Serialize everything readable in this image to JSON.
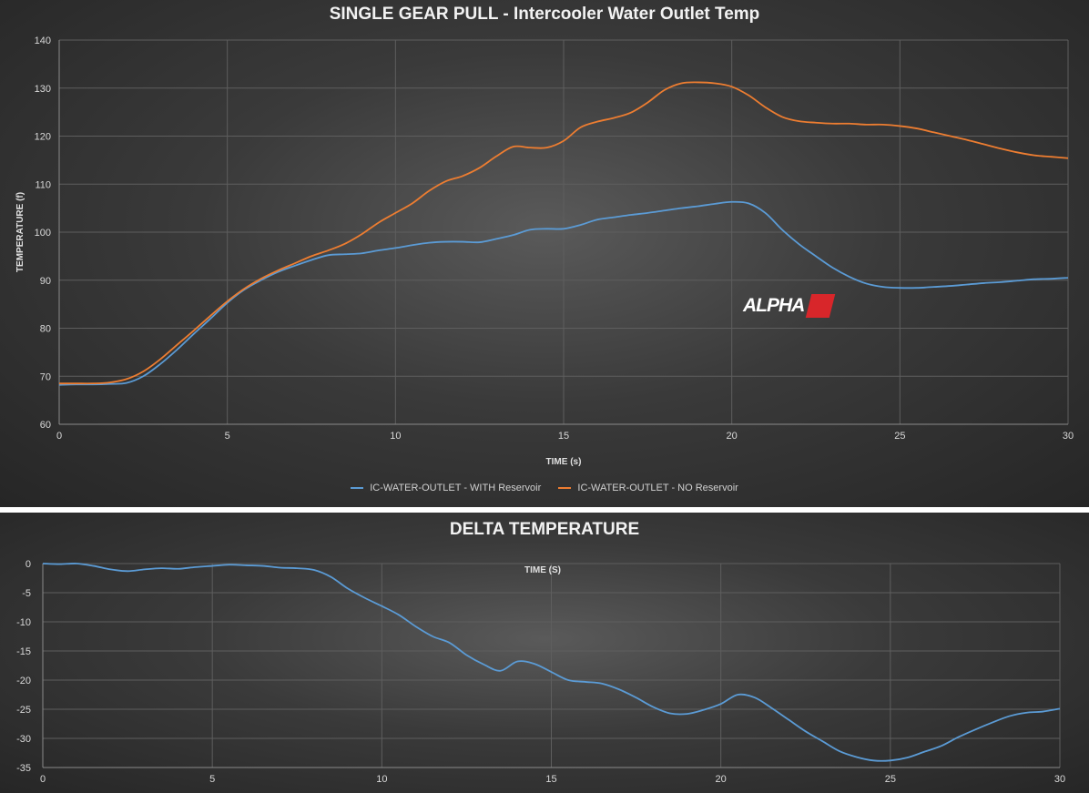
{
  "chart_data": [
    {
      "type": "line",
      "title": "SINGLE GEAR PULL - Intercooler Water Outlet Temp",
      "xlabel": "TIME (s)",
      "ylabel": "TEMPERATURE (f)",
      "xlim": [
        0,
        30
      ],
      "ylim": [
        60,
        140
      ],
      "xticks": [
        "0",
        "5",
        "10",
        "15",
        "20",
        "25",
        "30"
      ],
      "yticks": [
        "60",
        "70",
        "80",
        "90",
        "100",
        "110",
        "120",
        "130",
        "140"
      ],
      "grid": true,
      "legend": "bottom",
      "colors": [
        "#5b9bd5",
        "#ed7d31"
      ],
      "series": [
        {
          "name": "IC-WATER-OUTLET - WITH Reservoir",
          "x": [
            0,
            0.5,
            1,
            1.5,
            2,
            2.5,
            3,
            3.5,
            4,
            4.5,
            5,
            5.5,
            6,
            6.5,
            7,
            7.5,
            8,
            8.5,
            9,
            9.5,
            10,
            10.5,
            11,
            11.5,
            12,
            12.5,
            13,
            13.5,
            14,
            14.5,
            15,
            15.5,
            16,
            16.5,
            17,
            17.5,
            18,
            18.5,
            19,
            19.5,
            20,
            20.5,
            21,
            21.5,
            22,
            22.5,
            23,
            23.5,
            24,
            24.5,
            25,
            25.5,
            26,
            26.5,
            27,
            27.5,
            28,
            28.5,
            29,
            29.5,
            30
          ],
          "values": [
            68.2,
            68.3,
            68.3,
            68.4,
            68.6,
            70,
            72.5,
            75.5,
            78.8,
            82,
            85.3,
            88,
            90,
            91.7,
            93,
            94.2,
            95.2,
            95.4,
            95.6,
            96.2,
            96.7,
            97.3,
            97.8,
            98,
            98,
            97.9,
            98.6,
            99.4,
            100.5,
            100.7,
            100.7,
            101.5,
            102.6,
            103.1,
            103.6,
            104,
            104.5,
            105,
            105.4,
            105.9,
            106.3,
            106,
            104,
            100.5,
            97.5,
            95,
            92.6,
            90.7,
            89.3,
            88.6,
            88.4,
            88.4,
            88.6,
            88.8,
            89.1,
            89.4,
            89.6,
            89.9,
            90.2,
            90.3,
            90.5
          ]
        },
        {
          "name": "IC-WATER-OUTLET - NO Reservoir",
          "x": [
            0,
            0.5,
            1,
            1.5,
            2,
            2.5,
            3,
            3.5,
            4,
            4.5,
            5,
            5.5,
            6,
            6.5,
            7,
            7.5,
            8,
            8.5,
            9,
            9.5,
            10,
            10.5,
            11,
            11.5,
            12,
            12.5,
            13,
            13.5,
            14,
            14.5,
            15,
            15.5,
            16,
            16.5,
            17,
            17.5,
            18,
            18.5,
            19,
            19.5,
            20,
            20.5,
            21,
            21.5,
            22,
            22.5,
            23,
            23.5,
            24,
            24.5,
            25,
            25.5,
            26,
            26.5,
            27,
            27.5,
            28,
            28.5,
            29,
            29.5,
            30
          ],
          "values": [
            68.5,
            68.5,
            68.5,
            68.7,
            69.4,
            71,
            73.5,
            76.5,
            79.5,
            82.6,
            85.6,
            88.2,
            90.3,
            92,
            93.5,
            95,
            96.2,
            97.6,
            99.6,
            102,
            104,
            106,
            108.6,
            110.6,
            111.7,
            113.4,
            115.8,
            117.8,
            117.6,
            117.6,
            119,
            121.8,
            123,
            123.8,
            124.9,
            127,
            129.6,
            131,
            131.2,
            131,
            130.3,
            128.5,
            126,
            124,
            123.1,
            122.8,
            122.6,
            122.6,
            122.4,
            122.4,
            122.1,
            121.6,
            120.8,
            120,
            119.2,
            118.3,
            117.4,
            116.6,
            116,
            115.7,
            115.4
          ]
        }
      ]
    },
    {
      "type": "line",
      "title": "DELTA TEMPERATURE",
      "xlabel": "TIME (S)",
      "ylabel": "",
      "xlim": [
        0,
        30
      ],
      "ylim": [
        -35,
        0
      ],
      "xticks": [
        "0",
        "5",
        "10",
        "15",
        "20",
        "25",
        "30"
      ],
      "yticks": [
        "0",
        "-5",
        "-10",
        "-15",
        "-20",
        "-25",
        "-30",
        "-35"
      ],
      "grid": true,
      "legend": "none",
      "colors": [
        "#5b9bd5"
      ],
      "series": [
        {
          "x": [
            0,
            0.5,
            1,
            1.5,
            2,
            2.5,
            3,
            3.5,
            4,
            4.5,
            5,
            5.5,
            6,
            6.5,
            7,
            7.5,
            8,
            8.5,
            9,
            9.5,
            10,
            10.5,
            11,
            11.5,
            12,
            12.5,
            13,
            13.5,
            14,
            14.5,
            15,
            15.5,
            16,
            16.5,
            17,
            17.5,
            18,
            18.5,
            19,
            19.5,
            20,
            20.5,
            21,
            21.5,
            22,
            22.5,
            23,
            23.5,
            24,
            24.5,
            25,
            25.5,
            26,
            26.5,
            27,
            27.5,
            28,
            28.5,
            29,
            29.5,
            30
          ],
          "values": [
            0,
            -0.1,
            0,
            -0.4,
            -1,
            -1.3,
            -1,
            -0.8,
            -0.9,
            -0.6,
            -0.4,
            -0.2,
            -0.3,
            -0.4,
            -0.7,
            -0.8,
            -1.1,
            -2.3,
            -4.3,
            -5.9,
            -7.3,
            -8.8,
            -10.8,
            -12.5,
            -13.6,
            -15.7,
            -17.3,
            -18.4,
            -16.8,
            -17.2,
            -18.6,
            -20,
            -20.3,
            -20.6,
            -21.6,
            -23,
            -24.6,
            -25.7,
            -25.8,
            -25.1,
            -24.1,
            -22.5,
            -23,
            -24.8,
            -26.8,
            -28.8,
            -30.5,
            -32.2,
            -33.2,
            -33.8,
            -33.8,
            -33.3,
            -32.3,
            -31.3,
            -29.8,
            -28.5,
            -27.3,
            -26.2,
            -25.6,
            -25.4,
            -24.9
          ]
        }
      ]
    }
  ],
  "logo_text": "ALPHA"
}
